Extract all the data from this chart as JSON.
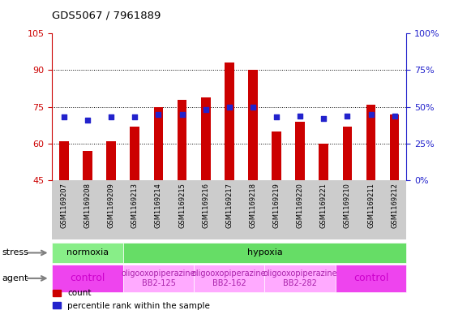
{
  "title": "GDS5067 / 7961889",
  "samples": [
    "GSM1169207",
    "GSM1169208",
    "GSM1169209",
    "GSM1169213",
    "GSM1169214",
    "GSM1169215",
    "GSM1169216",
    "GSM1169217",
    "GSM1169218",
    "GSM1169219",
    "GSM1169220",
    "GSM1169221",
    "GSM1169210",
    "GSM1169211",
    "GSM1169212"
  ],
  "counts": [
    61,
    57,
    61,
    67,
    75,
    78,
    79,
    93,
    90,
    65,
    69,
    60,
    67,
    76,
    72
  ],
  "percentiles": [
    43,
    41,
    43,
    43,
    45,
    45,
    48,
    50,
    50,
    43,
    44,
    42,
    44,
    45,
    44
  ],
  "ylim_left": [
    45,
    105
  ],
  "ylim_right": [
    0,
    100
  ],
  "yticks_left": [
    45,
    60,
    75,
    90,
    105
  ],
  "yticks_right": [
    0,
    25,
    50,
    75,
    100
  ],
  "bar_color": "#cc0000",
  "dot_color": "#2222cc",
  "stress_groups": [
    {
      "label": "normoxia",
      "start": 0,
      "end": 3,
      "color": "#88ee88"
    },
    {
      "label": "hypoxia",
      "start": 3,
      "end": 15,
      "color": "#66dd66"
    }
  ],
  "agent_groups": [
    {
      "label": "control",
      "start": 0,
      "end": 3,
      "color": "#ee44ee",
      "text_color": "#cc00cc",
      "fontsize": 9
    },
    {
      "label": "oligooxopiperazine\nBB2-125",
      "start": 3,
      "end": 6,
      "color": "#ffaaff",
      "text_color": "#aa22aa",
      "fontsize": 7
    },
    {
      "label": "oligooxopiperazine\nBB2-162",
      "start": 6,
      "end": 9,
      "color": "#ffaaff",
      "text_color": "#aa22aa",
      "fontsize": 7
    },
    {
      "label": "oligooxopiperazine\nBB2-282",
      "start": 9,
      "end": 12,
      "color": "#ffaaff",
      "text_color": "#aa22aa",
      "fontsize": 7
    },
    {
      "label": "control",
      "start": 12,
      "end": 15,
      "color": "#ee44ee",
      "text_color": "#cc00cc",
      "fontsize": 9
    }
  ],
  "stress_label": "stress",
  "agent_label": "agent",
  "legend_count_label": "count",
  "legend_pct_label": "percentile rank within the sample",
  "tick_label_color_left": "#cc0000",
  "tick_label_color_right": "#2222cc"
}
